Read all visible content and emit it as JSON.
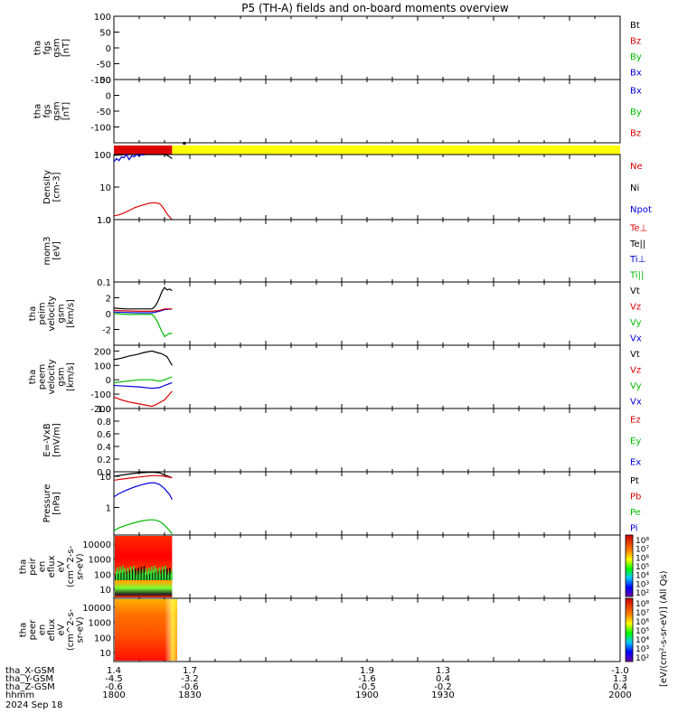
{
  "title": "P5 (TH-A) fields and on-board moments overview",
  "date_label": "2024 Sep 18",
  "colors": {
    "black": "#000000",
    "red": "#dd0000",
    "green": "#00bb00",
    "blue": "#0000dd",
    "yellow": "#ffff00"
  },
  "orbit": {
    "rows": [
      {
        "label": "tha_X-GSM",
        "values": [
          "1.4",
          "1.7",
          "1.9",
          "1.3",
          "-1.0"
        ]
      },
      {
        "label": "tha_Y-GSM",
        "values": [
          "-4.5",
          "-3.2",
          "-1.6",
          "0.4",
          "1.3"
        ]
      },
      {
        "label": "tha_Z-GSM",
        "values": [
          "-0.6",
          "-0.6",
          "-0.5",
          "-0.2",
          "0.4"
        ]
      },
      {
        "label": "hhmm",
        "values": [
          "1800",
          "1830",
          "1900",
          "1930",
          "2000"
        ]
      }
    ]
  },
  "spectrogram_colorbars": [
    {
      "unit_label": "[eV/(cm²-s-sr-eV)] (All Qs)",
      "ticks": [
        "10⁸",
        "10⁷",
        "10⁶",
        "10⁵",
        "10⁴",
        "10³",
        "10²"
      ]
    },
    {
      "unit_label": "[eV/(cm²-s-sr-eV)]",
      "ticks": [
        "10⁸",
        "10⁷",
        "10⁶",
        "10⁵",
        "10⁴",
        "10³",
        "10²"
      ]
    }
  ],
  "chart_data": [
    {
      "type": "line",
      "panel": "fgs_gsm_1",
      "ylabel_lines": [
        "tha",
        "fgs",
        "gsm",
        "[nT]"
      ],
      "ylim": [
        -100,
        100
      ],
      "yticks": [
        "100",
        "50",
        "0",
        "-50",
        "-100"
      ],
      "legend": [
        {
          "name": "Bt",
          "color": "black"
        },
        {
          "name": "Bz",
          "color": "red"
        },
        {
          "name": "By",
          "color": "green"
        },
        {
          "name": "Bx",
          "color": "blue"
        }
      ],
      "series": []
    },
    {
      "type": "line",
      "panel": "fgs_gsm_2",
      "ylabel_lines": [
        "tha",
        "fgs",
        "gsm",
        "[nT]"
      ],
      "ylim": [
        -150,
        50
      ],
      "yticks": [
        "50",
        "0",
        "-50",
        "-100"
      ],
      "legend": [
        {
          "name": "Bx",
          "color": "blue"
        },
        {
          "name": "By",
          "color": "green"
        },
        {
          "name": "Bz",
          "color": "red"
        }
      ],
      "series": []
    },
    {
      "type": "bar",
      "panel": "mode_bar",
      "segments": [
        {
          "from": 1800,
          "to": 1823,
          "color": "red"
        },
        {
          "from": 1823,
          "to": 2000,
          "color": "yellow"
        }
      ]
    },
    {
      "type": "line",
      "panel": "density",
      "scale": "log",
      "ylabel_lines": [
        "Density",
        "[cm-3]"
      ],
      "ylim": [
        1,
        100
      ],
      "yticks": [
        "100",
        "10",
        "1.0"
      ],
      "legend": [
        {
          "name": "Ne",
          "color": "red"
        },
        {
          "name": "Ni",
          "color": "black"
        },
        {
          "name": "Npot",
          "color": "blue"
        }
      ],
      "series": [
        {
          "name": "Ni",
          "color": "black",
          "x": [
            1800,
            1805,
            1810,
            1815,
            1820,
            1821,
            1822,
            1823
          ],
          "y": [
            95,
            100,
            100,
            100,
            100,
            95,
            85,
            75
          ]
        },
        {
          "name": "Npot",
          "color": "blue",
          "x": [
            1800,
            1801,
            1802,
            1803,
            1804,
            1805,
            1806,
            1807,
            1808,
            1809,
            1810,
            1811,
            1812
          ],
          "y": [
            60,
            75,
            65,
            85,
            80,
            100,
            70,
            90,
            85,
            100,
            90,
            100,
            95
          ]
        },
        {
          "name": "Ne",
          "color": "red",
          "x": [
            1800,
            1802,
            1804,
            1806,
            1808,
            1810,
            1812,
            1814,
            1816,
            1818,
            1819,
            1820,
            1821,
            1822,
            1823
          ],
          "y": [
            1.3,
            1.4,
            1.6,
            1.9,
            2.3,
            2.6,
            2.9,
            3.2,
            3.3,
            3.1,
            2.6,
            2.0,
            1.5,
            1.2,
            1.0
          ]
        }
      ]
    },
    {
      "type": "line",
      "panel": "temperature",
      "scale": "log",
      "ylabel_lines": [
        "mom3",
        "[eV]"
      ],
      "ylim": [
        0.1,
        1.0
      ],
      "yticks": [
        "1.0",
        "0.1"
      ],
      "legend": [
        {
          "name": "Te⊥",
          "color": "red"
        },
        {
          "name": "Te||",
          "color": "black"
        },
        {
          "name": "Ti⊥",
          "color": "blue"
        },
        {
          "name": "Ti||",
          "color": "green"
        }
      ],
      "series": []
    },
    {
      "type": "line",
      "panel": "peim_velocity",
      "ylabel_lines": [
        "tha",
        "peim",
        "velocity",
        "gsm",
        "[km/s]"
      ],
      "ylim": [
        -4,
        4
      ],
      "yticks": [
        "2",
        "0",
        "-2"
      ],
      "legend": [
        {
          "name": "Vt",
          "color": "black"
        },
        {
          "name": "Vz",
          "color": "red"
        },
        {
          "name": "Vy",
          "color": "green"
        },
        {
          "name": "Vx",
          "color": "blue"
        }
      ],
      "series": [
        {
          "name": "Vt",
          "color": "black",
          "x": [
            1800,
            1805,
            1810,
            1815,
            1816,
            1817,
            1818,
            1819,
            1820,
            1821,
            1822,
            1823
          ],
          "y": [
            0.7,
            0.6,
            0.6,
            0.6,
            0.8,
            1.3,
            2.0,
            2.8,
            3.3,
            3.0,
            3.1,
            2.9
          ]
        },
        {
          "name": "Vx",
          "color": "blue",
          "x": [
            1800,
            1810,
            1815,
            1818,
            1820,
            1823
          ],
          "y": [
            0.2,
            0.1,
            0.1,
            0.3,
            0.5,
            0.6
          ]
        },
        {
          "name": "Vz",
          "color": "red",
          "x": [
            1800,
            1810,
            1815,
            1818,
            1820,
            1823
          ],
          "y": [
            0.4,
            0.3,
            0.3,
            0.4,
            0.6,
            0.6
          ]
        },
        {
          "name": "Vy",
          "color": "green",
          "x": [
            1800,
            1805,
            1810,
            1815,
            1816,
            1817,
            1818,
            1819,
            1820,
            1821,
            1822,
            1823
          ],
          "y": [
            0.0,
            -0.1,
            -0.1,
            -0.1,
            -0.4,
            -0.9,
            -1.6,
            -2.3,
            -2.9,
            -2.7,
            -2.5,
            -2.5
          ]
        }
      ]
    },
    {
      "type": "line",
      "panel": "peem_velocity",
      "ylabel_lines": [
        "tha",
        "peem",
        "velocity",
        "gsm",
        "[km/s]"
      ],
      "ylim": [
        -200,
        240
      ],
      "yticks": [
        "200",
        "100",
        "0",
        "-100",
        "-200"
      ],
      "legend": [
        {
          "name": "Vt",
          "color": "black"
        },
        {
          "name": "Vz",
          "color": "red"
        },
        {
          "name": "Vy",
          "color": "green"
        },
        {
          "name": "Vx",
          "color": "blue"
        }
      ],
      "series": [
        {
          "name": "Vt",
          "color": "black",
          "x": [
            1800,
            1803,
            1806,
            1809,
            1812,
            1815,
            1817,
            1819,
            1820,
            1821,
            1822,
            1823
          ],
          "y": [
            140,
            150,
            165,
            175,
            190,
            200,
            190,
            180,
            170,
            160,
            130,
            100
          ]
        },
        {
          "name": "Vy",
          "color": "green",
          "x": [
            1800,
            1805,
            1810,
            1815,
            1818,
            1820,
            1823
          ],
          "y": [
            -20,
            -10,
            0,
            0,
            -10,
            0,
            20
          ]
        },
        {
          "name": "Vx",
          "color": "blue",
          "x": [
            1800,
            1805,
            1810,
            1815,
            1818,
            1820,
            1823
          ],
          "y": [
            -40,
            -45,
            -50,
            -60,
            -55,
            -40,
            -20
          ]
        },
        {
          "name": "Vz",
          "color": "red",
          "x": [
            1800,
            1803,
            1806,
            1809,
            1812,
            1815,
            1817,
            1819,
            1820,
            1821,
            1822,
            1823
          ],
          "y": [
            -120,
            -140,
            -155,
            -165,
            -175,
            -185,
            -170,
            -150,
            -140,
            -120,
            -100,
            -80
          ]
        }
      ]
    },
    {
      "type": "line",
      "panel": "efield",
      "ylabel_lines": [
        "E=-VxB",
        "[mV/m]"
      ],
      "ylim": [
        0,
        1
      ],
      "yticks": [
        "1.0",
        "0.8",
        "0.6",
        "0.4",
        "0.2",
        "0.0"
      ],
      "legend": [
        {
          "name": "Ez",
          "color": "red"
        },
        {
          "name": "Ey",
          "color": "green"
        },
        {
          "name": "Ex",
          "color": "blue"
        }
      ],
      "series": []
    },
    {
      "type": "line",
      "panel": "pressure",
      "scale": "log",
      "ylabel_lines": [
        "Pressure",
        "[nPa]"
      ],
      "ylim": [
        0.13,
        14
      ],
      "yticks": [
        "10",
        "1"
      ],
      "legend": [
        {
          "name": "Pt",
          "color": "black"
        },
        {
          "name": "Pb",
          "color": "red"
        },
        {
          "name": "Pe",
          "color": "green"
        },
        {
          "name": "Pi",
          "color": "blue"
        }
      ],
      "series": [
        {
          "name": "Pt",
          "color": "black",
          "x": [
            1800,
            1805,
            1810,
            1815,
            1818,
            1820,
            1823
          ],
          "y": [
            10,
            11.5,
            13,
            13.5,
            13,
            11,
            9
          ]
        },
        {
          "name": "Pb",
          "color": "red",
          "x": [
            1800,
            1805,
            1810,
            1815,
            1818,
            1820,
            1823
          ],
          "y": [
            7.5,
            8.5,
            9.5,
            10.5,
            10.5,
            10,
            9
          ]
        },
        {
          "name": "Pi",
          "color": "blue",
          "x": [
            1800,
            1802,
            1805,
            1808,
            1811,
            1814,
            1816,
            1818,
            1820,
            1822,
            1823
          ],
          "y": [
            2.2,
            2.8,
            3.6,
            4.5,
            5.4,
            6.1,
            6.2,
            5.5,
            4.0,
            2.6,
            1.8
          ]
        },
        {
          "name": "Pe",
          "color": "green",
          "x": [
            1800,
            1802,
            1805,
            1808,
            1811,
            1814,
            1816,
            1818,
            1820,
            1822,
            1823
          ],
          "y": [
            0.18,
            0.22,
            0.27,
            0.32,
            0.37,
            0.4,
            0.4,
            0.36,
            0.27,
            0.18,
            0.14
          ]
        }
      ]
    },
    {
      "type": "heatmap",
      "panel": "peir_spectrogram",
      "ylabel_lines": [
        "tha",
        "peir",
        "en",
        "eflux",
        "eV",
        "(cm^2-s-",
        "sr-eV)"
      ],
      "yticks": [
        "10000",
        "1000",
        "100",
        "10"
      ],
      "x_range": [
        1800,
        1823
      ]
    },
    {
      "type": "heatmap",
      "panel": "peer_spectrogram",
      "ylabel_lines": [
        "tha",
        "peer",
        "en",
        "eflux",
        "eV",
        "(cm^2-s-",
        "sr-eV)"
      ],
      "yticks": [
        "10000",
        "1000",
        "100",
        "10"
      ],
      "x_range": [
        1800,
        1825
      ]
    }
  ]
}
